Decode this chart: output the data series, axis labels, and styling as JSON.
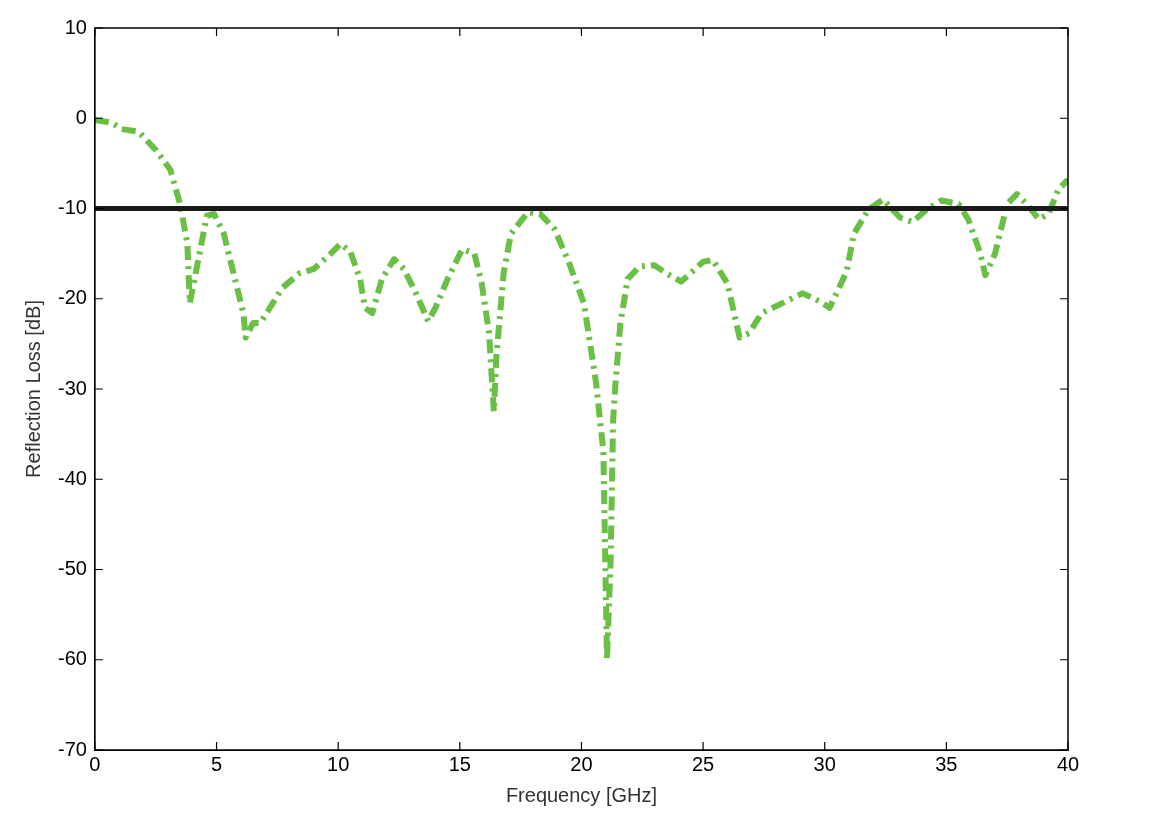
{
  "chart_data": {
    "type": "line",
    "xlabel": "Frequency [GHz]",
    "ylabel": "Reflection Loss [dB]",
    "xlim": [
      0,
      40
    ],
    "xticks": [
      0,
      5,
      10,
      15,
      20,
      25,
      30,
      35,
      40
    ],
    "ylim": [
      -70,
      10
    ],
    "yticks": [
      -70,
      -60,
      -50,
      -40,
      -30,
      -20,
      -10,
      0,
      10
    ],
    "grid": false,
    "legend": false,
    "marker": "none",
    "line_style": "dashed",
    "series": [
      {
        "color": "#6abf45",
        "x": [
          0,
          0.7,
          1.1,
          1.8,
          2.5,
          3.1,
          3.5,
          3.8,
          3.9,
          4.3,
          4.6,
          4.9,
          5.3,
          5.7,
          6.1,
          6.2,
          6.5,
          6.8,
          7.7,
          8.4,
          9.0,
          9.7,
          10.1,
          10.5,
          10.9,
          11.1,
          11.4,
          11.8,
          12.3,
          12.7,
          13.2,
          13.7,
          14.0,
          14.5,
          15.1,
          15.6,
          15.9,
          16.2,
          16.4,
          16.5,
          16.8,
          17.1,
          17.8,
          18.3,
          18.9,
          19.5,
          20.1,
          20.6,
          20.9,
          21.05,
          21.2,
          21.3,
          21.4,
          21.6,
          21.9,
          22.4,
          23.0,
          23.5,
          24.1,
          25.0,
          25.4,
          26.0,
          26.5,
          26.9,
          27.4,
          28.1,
          28.7,
          29.1,
          29.8,
          30.2,
          30.9,
          31.2,
          31.8,
          32.4,
          33.1,
          33.6,
          34.2,
          34.8,
          35.5,
          35.9,
          36.4,
          36.6,
          37.0,
          37.5,
          37.9,
          38.3,
          38.8,
          39.2,
          39.6,
          40
        ],
        "values": [
          -0.2,
          -0.5,
          -1.2,
          -1.5,
          -3.5,
          -5.7,
          -9.5,
          -13.9,
          -20.5,
          -15,
          -10.8,
          -10.6,
          -12.8,
          -17.2,
          -21.6,
          -24.3,
          -22.7,
          -22.7,
          -18.8,
          -17.2,
          -16.7,
          -15,
          -13.9,
          -14.8,
          -17.8,
          -21,
          -21.6,
          -17.8,
          -15.6,
          -16.7,
          -19.4,
          -22.5,
          -21,
          -17.8,
          -14.5,
          -15,
          -18.3,
          -23.8,
          -32.5,
          -26.5,
          -17.2,
          -12.8,
          -10.4,
          -10.6,
          -12.3,
          -16.1,
          -20.5,
          -29.3,
          -36.9,
          -60,
          -49,
          -33.6,
          -29.3,
          -22.7,
          -17.8,
          -16.4,
          -16.3,
          -17.2,
          -18.1,
          -15.9,
          -15.7,
          -18.3,
          -24.3,
          -23.8,
          -21.6,
          -20.7,
          -19.9,
          -19.4,
          -20.3,
          -21,
          -17,
          -12.8,
          -10.1,
          -9,
          -11,
          -11.5,
          -10.1,
          -9.1,
          -9.5,
          -11.2,
          -15,
          -17.4,
          -15,
          -9.5,
          -8.4,
          -9.5,
          -11.2,
          -10.6,
          -7.9,
          -6.8
        ]
      }
    ],
    "ref_lines": [
      {
        "axis": "y",
        "value": -10,
        "color": "#1a1a1a",
        "line_style": "solid"
      }
    ]
  }
}
